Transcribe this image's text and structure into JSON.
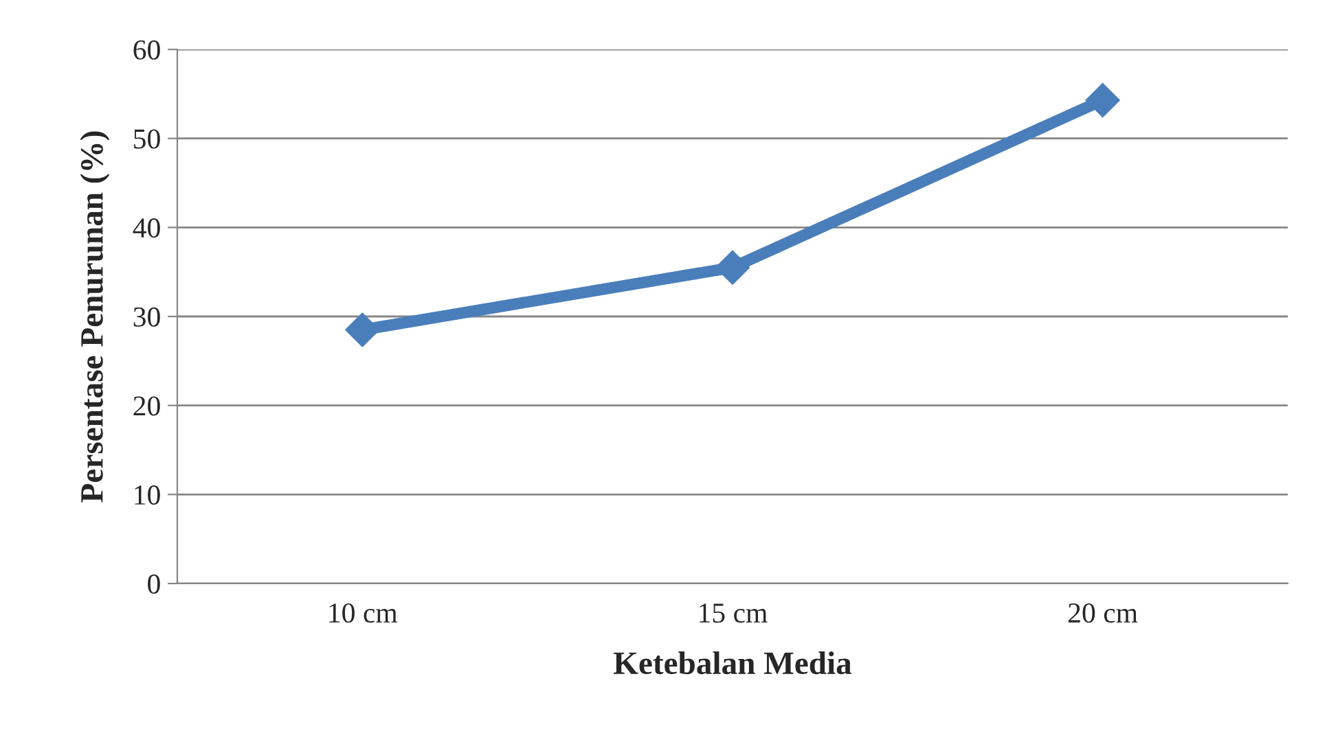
{
  "chart_data": {
    "type": "line",
    "xlabel": "Ketebalan Media",
    "ylabel": "Persentase Penurunan (%)",
    "categories": [
      "10 cm",
      "15 cm",
      "20 cm"
    ],
    "series": [
      {
        "color": "#4a7ebb",
        "values": [
          28.5,
          35.5,
          54.3
        ]
      }
    ],
    "ylim": [
      0,
      60
    ],
    "yticks": [
      0,
      10,
      20,
      30,
      40,
      50,
      60
    ],
    "grid": "y",
    "marker": "diamond",
    "line_style": "solid",
    "legend": false
  }
}
